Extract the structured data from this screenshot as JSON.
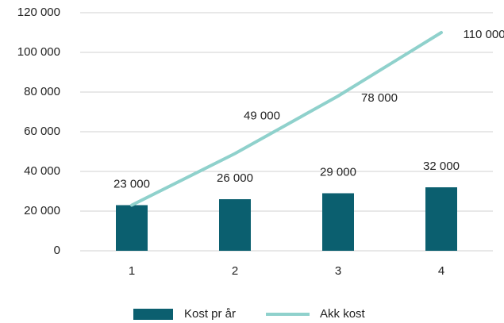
{
  "chart_data": {
    "type": "bar",
    "categories": [
      "1",
      "2",
      "3",
      "4"
    ],
    "series": [
      {
        "name": "Kost pr år",
        "type": "bar",
        "color": "#0b5f6f",
        "values": [
          23000,
          26000,
          29000,
          32000
        ],
        "value_labels": [
          "23 000",
          "26 000",
          "29 000",
          "32 000"
        ]
      },
      {
        "name": "Akk kost",
        "type": "line",
        "color": "#8fd1cc",
        "values": [
          23000,
          49000,
          78000,
          110000
        ],
        "value_labels": [
          null,
          "49 000",
          "78 000",
          "110 000"
        ]
      }
    ],
    "ylim": [
      0,
      120000
    ],
    "yticks": [
      0,
      {
        "value": 20000,
        "label": "20 000"
      },
      {
        "value": 40000,
        "label": "40 000"
      },
      {
        "value": 60000,
        "label": "60 000"
      },
      {
        "value": 80000,
        "label": "80 000"
      },
      {
        "value": 100000,
        "label": "100 000"
      },
      {
        "value": 120000,
        "label": "120 000"
      }
    ],
    "grid": true,
    "legend": "bottom"
  }
}
